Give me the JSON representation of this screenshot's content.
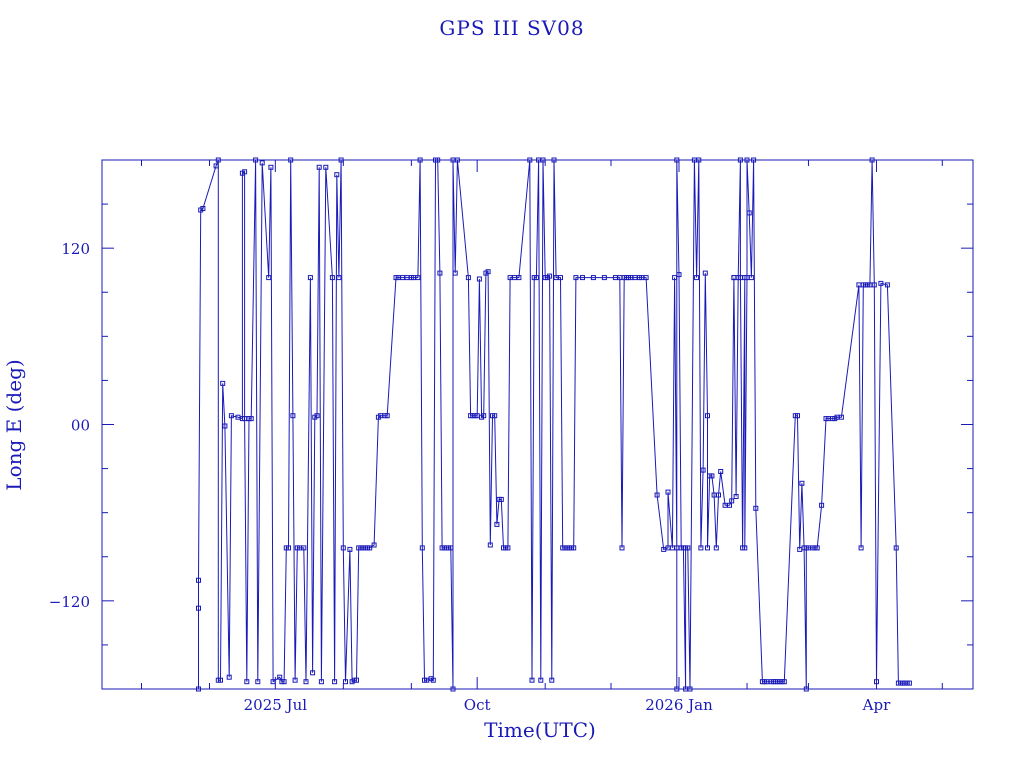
{
  "chart_data": {
    "type": "line",
    "title": "GPS III SV08",
    "xlabel": "Time(UTC)",
    "ylabel": "Long E (deg)",
    "xlim": [
      "2025-04-13",
      "2026-05-15"
    ],
    "ylim": [
      -180,
      180
    ],
    "x_ticks": [
      {
        "date": "2025-07-01",
        "label": "2025 Jul"
      },
      {
        "date": "2025-10-01",
        "label": "Oct"
      },
      {
        "date": "2026-01-01",
        "label": "2026 Jan"
      },
      {
        "date": "2026-04-01",
        "label": "Apr"
      }
    ],
    "y_ticks": [
      {
        "value": 120,
        "label": "120"
      },
      {
        "value": 0,
        "label": "00"
      },
      {
        "value": -120,
        "label": "−120"
      }
    ],
    "grid": false,
    "color": "#1a1ab8",
    "series": [
      {
        "name": "",
        "points": [
          [
            "2025-05-27",
            -180
          ],
          [
            "2025-05-27",
            -125
          ],
          [
            "2025-05-27",
            -106
          ],
          [
            "2025-05-28",
            146
          ],
          [
            "2025-05-29",
            147
          ],
          [
            "2025-06-04",
            176
          ],
          [
            "2025-06-05",
            180
          ],
          [
            "2025-06-05",
            -174
          ],
          [
            "2025-06-06",
            -174
          ],
          [
            "2025-06-07",
            28
          ],
          [
            "2025-06-08",
            -1
          ],
          [
            "2025-06-10",
            -172
          ],
          [
            "2025-06-11",
            6
          ],
          [
            "2025-06-14",
            5
          ],
          [
            "2025-06-16",
            4
          ],
          [
            "2025-06-16",
            171
          ],
          [
            "2025-06-17",
            172
          ],
          [
            "2025-06-17",
            4
          ],
          [
            "2025-06-18",
            -175
          ],
          [
            "2025-06-19",
            4
          ],
          [
            "2025-06-19",
            4
          ],
          [
            "2025-06-20",
            4
          ],
          [
            "2025-06-22",
            180
          ],
          [
            "2025-06-23",
            -175
          ],
          [
            "2025-06-25",
            178
          ],
          [
            "2025-06-28",
            100
          ],
          [
            "2025-06-29",
            175
          ],
          [
            "2025-06-30",
            -175
          ],
          [
            "2025-07-03",
            -172
          ],
          [
            "2025-07-04",
            -175
          ],
          [
            "2025-07-05",
            -175
          ],
          [
            "2025-07-06",
            -84
          ],
          [
            "2025-07-07",
            -84
          ],
          [
            "2025-07-08",
            180
          ],
          [
            "2025-07-09",
            6
          ],
          [
            "2025-07-10",
            -174
          ],
          [
            "2025-07-11",
            -84
          ],
          [
            "2025-07-12",
            -84
          ],
          [
            "2025-07-14",
            -84
          ],
          [
            "2025-07-15",
            -175
          ],
          [
            "2025-07-17",
            100
          ],
          [
            "2025-07-18",
            -169
          ],
          [
            "2025-07-19",
            5
          ],
          [
            "2025-07-20",
            6
          ],
          [
            "2025-07-21",
            175
          ],
          [
            "2025-07-22",
            -175
          ],
          [
            "2025-07-24",
            175
          ],
          [
            "2025-07-27",
            100
          ],
          [
            "2025-07-28",
            -175
          ],
          [
            "2025-07-29",
            170
          ],
          [
            "2025-07-30",
            100
          ],
          [
            "2025-07-31",
            180
          ],
          [
            "2025-08-01",
            -84
          ],
          [
            "2025-08-02",
            -175
          ],
          [
            "2025-08-04",
            -85
          ],
          [
            "2025-08-05",
            -175
          ],
          [
            "2025-08-06",
            -174
          ],
          [
            "2025-08-07",
            -174
          ],
          [
            "2025-08-08",
            -84
          ],
          [
            "2025-08-09",
            -84
          ],
          [
            "2025-08-10",
            -84
          ],
          [
            "2025-08-11",
            -84
          ],
          [
            "2025-08-12",
            -84
          ],
          [
            "2025-08-13",
            -84
          ],
          [
            "2025-08-15",
            -82
          ],
          [
            "2025-08-17",
            5
          ],
          [
            "2025-08-18",
            6
          ],
          [
            "2025-08-20",
            6
          ],
          [
            "2025-08-21",
            6
          ],
          [
            "2025-08-25",
            100
          ],
          [
            "2025-08-26",
            100
          ],
          [
            "2025-08-28",
            100
          ],
          [
            "2025-08-30",
            100
          ],
          [
            "2025-09-01",
            100
          ],
          [
            "2025-09-02",
            100
          ],
          [
            "2025-09-04",
            100
          ],
          [
            "2025-09-05",
            180
          ],
          [
            "2025-09-06",
            -84
          ],
          [
            "2025-09-07",
            -174
          ],
          [
            "2025-09-08",
            -174
          ],
          [
            "2025-09-10",
            -173
          ],
          [
            "2025-09-11",
            -174
          ],
          [
            "2025-09-12",
            180
          ],
          [
            "2025-09-13",
            180
          ],
          [
            "2025-09-14",
            103
          ],
          [
            "2025-09-15",
            -84
          ],
          [
            "2025-09-16",
            -84
          ],
          [
            "2025-09-17",
            -84
          ],
          [
            "2025-09-18",
            -84
          ],
          [
            "2025-09-19",
            -84
          ],
          [
            "2025-09-20",
            -180
          ],
          [
            "2025-09-20",
            180
          ],
          [
            "2025-09-21",
            103
          ],
          [
            "2025-09-22",
            180
          ],
          [
            "2025-09-27",
            100
          ],
          [
            "2025-09-28",
            6
          ],
          [
            "2025-09-29",
            6
          ],
          [
            "2025-09-30",
            6
          ],
          [
            "2025-10-01",
            6
          ],
          [
            "2025-10-02",
            99
          ],
          [
            "2025-10-03",
            5
          ],
          [
            "2025-10-04",
            6
          ],
          [
            "2025-10-05",
            103
          ],
          [
            "2025-10-06",
            104
          ],
          [
            "2025-10-07",
            -82
          ],
          [
            "2025-10-08",
            6
          ],
          [
            "2025-10-09",
            6
          ],
          [
            "2025-10-10",
            -68
          ],
          [
            "2025-10-11",
            -51
          ],
          [
            "2025-10-12",
            -51
          ],
          [
            "2025-10-13",
            -84
          ],
          [
            "2025-10-14",
            -84
          ],
          [
            "2025-10-15",
            -84
          ],
          [
            "2025-10-16",
            100
          ],
          [
            "2025-10-18",
            100
          ],
          [
            "2025-10-20",
            100
          ],
          [
            "2025-10-25",
            180
          ],
          [
            "2025-10-26",
            -174
          ],
          [
            "2025-10-27",
            100
          ],
          [
            "2025-10-28",
            100
          ],
          [
            "2025-10-29",
            180
          ],
          [
            "2025-10-30",
            -174
          ],
          [
            "2025-10-31",
            180
          ],
          [
            "2025-11-01",
            100
          ],
          [
            "2025-11-02",
            100
          ],
          [
            "2025-11-03",
            101
          ],
          [
            "2025-11-04",
            -174
          ],
          [
            "2025-11-05",
            180
          ],
          [
            "2025-11-06",
            100
          ],
          [
            "2025-11-08",
            100
          ],
          [
            "2025-11-09",
            -84
          ],
          [
            "2025-11-10",
            -84
          ],
          [
            "2025-11-11",
            -84
          ],
          [
            "2025-11-12",
            -84
          ],
          [
            "2025-11-13",
            -84
          ],
          [
            "2025-11-14",
            -84
          ],
          [
            "2025-11-15",
            100
          ],
          [
            "2025-11-18",
            100
          ],
          [
            "2025-11-23",
            100
          ],
          [
            "2025-11-28",
            100
          ],
          [
            "2025-12-03",
            100
          ],
          [
            "2025-12-05",
            100
          ],
          [
            "2025-12-06",
            -84
          ],
          [
            "2025-12-07",
            100
          ],
          [
            "2025-12-08",
            100
          ],
          [
            "2025-12-09",
            100
          ],
          [
            "2025-12-10",
            100
          ],
          [
            "2025-12-12",
            100
          ],
          [
            "2025-12-14",
            100
          ],
          [
            "2025-12-15",
            100
          ],
          [
            "2025-12-17",
            100
          ],
          [
            "2025-12-22",
            -48
          ],
          [
            "2025-12-25",
            -85
          ],
          [
            "2025-12-27",
            -84
          ],
          [
            "2025-12-27",
            -46
          ],
          [
            "2025-12-29",
            -84
          ],
          [
            "2025-12-30",
            100
          ],
          [
            "2025-12-31",
            -84
          ],
          [
            "2025-12-31",
            -180
          ],
          [
            "2025-12-31",
            180
          ],
          [
            "2026-01-01",
            102
          ],
          [
            "2026-01-02",
            -84
          ],
          [
            "2026-01-03",
            -84
          ],
          [
            "2026-01-04",
            -180
          ],
          [
            "2026-01-04",
            -84
          ],
          [
            "2026-01-05",
            -84
          ],
          [
            "2026-01-06",
            -180
          ],
          [
            "2026-01-08",
            180
          ],
          [
            "2026-01-09",
            100
          ],
          [
            "2026-01-10",
            180
          ],
          [
            "2026-01-11",
            -84
          ],
          [
            "2026-01-12",
            -31
          ],
          [
            "2026-01-13",
            103
          ],
          [
            "2026-01-14",
            6
          ],
          [
            "2026-01-14",
            -84
          ],
          [
            "2026-01-15",
            -35
          ],
          [
            "2026-01-16",
            -35
          ],
          [
            "2026-01-17",
            -48
          ],
          [
            "2026-01-18",
            -84
          ],
          [
            "2026-01-19",
            -48
          ],
          [
            "2026-01-20",
            -32
          ],
          [
            "2026-01-22",
            -55
          ],
          [
            "2026-01-24",
            -55
          ],
          [
            "2026-01-25",
            -52
          ],
          [
            "2026-01-26",
            100
          ],
          [
            "2026-01-26",
            100
          ],
          [
            "2026-01-27",
            -49
          ],
          [
            "2026-01-28",
            100
          ],
          [
            "2026-01-29",
            180
          ],
          [
            "2026-01-29",
            100
          ],
          [
            "2026-01-30",
            -84
          ],
          [
            "2026-01-31",
            100
          ],
          [
            "2026-01-31",
            -84
          ],
          [
            "2026-02-01",
            100
          ],
          [
            "2026-02-01",
            180
          ],
          [
            "2026-02-02",
            144
          ],
          [
            "2026-02-03",
            100
          ],
          [
            "2026-02-04",
            180
          ],
          [
            "2026-02-05",
            -57
          ],
          [
            "2026-02-08",
            -175
          ],
          [
            "2026-02-09",
            -175
          ],
          [
            "2026-02-10",
            -175
          ],
          [
            "2026-02-12",
            -175
          ],
          [
            "2026-02-13",
            -175
          ],
          [
            "2026-02-14",
            -175
          ],
          [
            "2026-02-15",
            -175
          ],
          [
            "2026-02-16",
            -175
          ],
          [
            "2026-02-17",
            -175
          ],
          [
            "2026-02-18",
            -175
          ],
          [
            "2026-02-23",
            6
          ],
          [
            "2026-02-24",
            6
          ],
          [
            "2026-02-25",
            -85
          ],
          [
            "2026-02-26",
            -40
          ],
          [
            "2026-02-27",
            -84
          ],
          [
            "2026-02-28",
            -180
          ],
          [
            "2026-02-28",
            -84
          ],
          [
            "2026-03-01",
            -84
          ],
          [
            "2026-03-03",
            -84
          ],
          [
            "2026-03-04",
            -84
          ],
          [
            "2026-03-05",
            -84
          ],
          [
            "2026-03-07",
            -55
          ],
          [
            "2026-03-09",
            4
          ],
          [
            "2026-03-10",
            4
          ],
          [
            "2026-03-12",
            4
          ],
          [
            "2026-03-13",
            4
          ],
          [
            "2026-03-14",
            5
          ],
          [
            "2026-03-16",
            5
          ],
          [
            "2026-03-24",
            95
          ],
          [
            "2026-03-25",
            -84
          ],
          [
            "2026-03-26",
            95
          ],
          [
            "2026-03-27",
            95
          ],
          [
            "2026-03-28",
            95
          ],
          [
            "2026-03-29",
            95
          ],
          [
            "2026-03-30",
            180
          ],
          [
            "2026-03-31",
            95
          ],
          [
            "2026-04-01",
            -175
          ],
          [
            "2026-04-03",
            96
          ],
          [
            "2026-04-06",
            95
          ],
          [
            "2026-04-10",
            -84
          ],
          [
            "2026-04-11",
            -176
          ],
          [
            "2026-04-12",
            -176
          ],
          [
            "2026-04-13",
            -176
          ],
          [
            "2026-04-14",
            -176
          ],
          [
            "2026-04-15",
            -176
          ],
          [
            "2026-04-16",
            -176
          ]
        ]
      }
    ]
  }
}
